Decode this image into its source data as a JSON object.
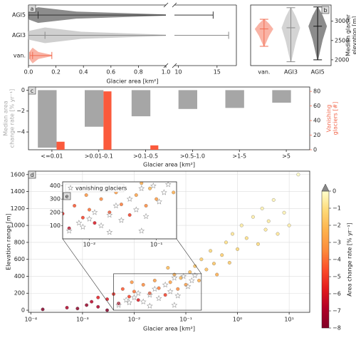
{
  "chart_data": [
    {
      "type": "violin-h",
      "label": "a",
      "xlabel": "Glacier area [km²]",
      "xlim": [
        0,
        1.0
      ],
      "xticks": [
        {
          "value": 0,
          "label": "0.0"
        },
        0.2,
        0.4,
        0.6,
        0.8,
        {
          "value": 1,
          "label": "1.0"
        }
      ],
      "x2lim": [
        9.5,
        17.5
      ],
      "x2ticks": [
        10,
        15
      ],
      "violins": [
        {
          "name": "AGI5",
          "min": 0.0,
          "median": 0.07,
          "max": 14.5,
          "color": "#8c8c8c",
          "line_color": "#333333"
        },
        {
          "name": "AGI3",
          "min": 0.0,
          "median": 0.12,
          "max": 16.5,
          "color": "#cfcfcf",
          "line_color": "#8a8a8a"
        },
        {
          "name": "van.",
          "min": 0.01,
          "median": 0.03,
          "max": 0.17,
          "color": "#f9b3a5",
          "line_color": "#f26b50"
        }
      ]
    },
    {
      "type": "violin-v",
      "label": "b",
      "ylabel": [
        "Median glacier",
        "elevation [m]"
      ],
      "ylim": [
        1850,
        3420
      ],
      "yticks": [
        2000,
        2500,
        3000
      ],
      "violins": [
        {
          "name": "van.",
          "min": 2350,
          "median": 2800,
          "max": 3050,
          "color": "#f9b3a5",
          "line_color": "#f26b50"
        },
        {
          "name": "AGI3",
          "min": 1950,
          "median": 2830,
          "max": 3350,
          "color": "#d4d4d4",
          "line_color": "#8a8a8a"
        },
        {
          "name": "AGI5",
          "min": 2000,
          "median": 2870,
          "max": 3370,
          "color": "#8c8c8c",
          "line_color": "#111111"
        }
      ]
    },
    {
      "type": "bar",
      "label": "c",
      "xlabel": "Glacier area [km²]",
      "ylabel": [
        "Median area",
        "change rate [% yr⁻¹]"
      ],
      "ylabel_color": "#aaaaaa",
      "y2label": [
        "Vanishing",
        "glaciers [#]"
      ],
      "y2label_color": "#f26b50",
      "categories": [
        "<=0.01",
        ">0.01-0.1",
        ">0.1-0.5",
        ">0.5-1.0",
        ">1-5",
        ">5"
      ],
      "ylim": [
        -5.7,
        0.3
      ],
      "yticks": [
        0,
        {
          "value": -2,
          "label": "−2"
        },
        {
          "value": -4,
          "label": "−4"
        }
      ],
      "y2lim": [
        0,
        86
      ],
      "y2ticks": [
        0,
        20,
        40,
        60,
        80
      ],
      "series": [
        {
          "color": "#a6a6a6",
          "values": [
            -5.5,
            -3.5,
            -2.5,
            -1.8,
            -1.7,
            -1.2
          ]
        },
        {
          "color": "#fb5a3c",
          "axis": "y2",
          "values": [
            11,
            80,
            6,
            null,
            null,
            null
          ]
        }
      ]
    },
    {
      "type": "scatter",
      "label": "d",
      "xlabel": "Glacier area [km²]",
      "ylabel": "Elevation range [m]",
      "log_x": true,
      "grid": true,
      "xlim": [
        9e-05,
        25
      ],
      "xticks": [
        {
          "value": 0.0001,
          "label": "10⁻⁴"
        },
        {
          "value": 0.001,
          "label": "10⁻³"
        },
        {
          "value": 0.01,
          "label": "10⁻²"
        },
        {
          "value": 0.1,
          "label": "10⁻¹"
        },
        {
          "value": 1,
          "label": "10⁰"
        },
        {
          "value": 10,
          "label": "10¹"
        }
      ],
      "ylim": [
        -25,
        1640
      ],
      "yticks": [
        0,
        200,
        400,
        600,
        800,
        1000,
        1200,
        1400,
        1600
      ],
      "points": {
        "x": [
          0.00017,
          0.0012,
          0.0015,
          0.002,
          0.003,
          0.004,
          0.005,
          0.006,
          0.008,
          0.01,
          0.012,
          0.015,
          0.02,
          0.025,
          0.03,
          0.04,
          0.05,
          0.06,
          0.07,
          0.08,
          0.1,
          0.12,
          0.15,
          0.18,
          0.2,
          0.25,
          0.3,
          0.35,
          0.4,
          0.5,
          0.6,
          0.7,
          0.8,
          1.0,
          1.2,
          1.5,
          2,
          2.5,
          3,
          3.5,
          4,
          5,
          6,
          8,
          10,
          15,
          0.0008,
          0.002,
          0.009,
          0.045,
          0.003,
          0.0005
        ],
        "y": [
          10,
          60,
          100,
          40,
          130,
          190,
          80,
          250,
          160,
          220,
          120,
          300,
          200,
          350,
          260,
          180,
          330,
          420,
          250,
          380,
          300,
          450,
          520,
          350,
          600,
          480,
          700,
          550,
          420,
          650,
          800,
          560,
          900,
          720,
          1000,
          850,
          1100,
          780,
          1200,
          950,
          1050,
          1300,
          900,
          1150,
          1000,
          1600,
          20,
          150,
          330,
          500,
          0,
          30
        ],
        "rate": [
          -8,
          -7.5,
          -6.8,
          -7,
          -6,
          -5.5,
          -6.5,
          -4.5,
          -5,
          -4,
          -6,
          -3.5,
          -4.5,
          -3,
          -3.8,
          -5,
          -2.8,
          -2.5,
          -3.5,
          -2.2,
          -3,
          -2,
          -1.8,
          -2.5,
          -1.5,
          -2,
          -1.2,
          -1.8,
          -2.5,
          -1.5,
          -1,
          -1.6,
          -0.8,
          -1.2,
          -0.6,
          -1,
          -0.5,
          -1.1,
          -0.4,
          -0.7,
          -0.6,
          -0.3,
          -0.8,
          -0.4,
          -0.5,
          -0.1,
          -7.8,
          -5.8,
          -3.2,
          -2.1,
          -8,
          -7
        ]
      },
      "series": [
        {
          "name": "vanishing glaciers",
          "color": "#999999",
          "x": [
            0.005,
            0.007,
            0.008,
            0.01,
            0.012,
            0.015,
            0.02,
            0.025,
            0.03,
            0.04,
            0.05,
            0.06,
            0.07,
            0.09,
            0.11,
            0.13,
            0.15,
            0.06,
            0.02
          ],
          "y": [
            60,
            120,
            90,
            150,
            200,
            100,
            180,
            250,
            140,
            300,
            220,
            380,
            170,
            400,
            280,
            350,
            410,
            60,
            50
          ]
        }
      ],
      "colorbar": {
        "label": "Area change rate [% yr⁻¹]",
        "lim": [
          -8,
          0
        ],
        "ticks": [
          0,
          {
            "value": -1,
            "label": "−1"
          },
          {
            "value": -2,
            "label": "−2"
          },
          {
            "value": -3,
            "label": "−3"
          },
          {
            "value": -4,
            "label": "−4"
          },
          {
            "value": -5,
            "label": "−5"
          },
          {
            "value": -6,
            "label": "−6"
          },
          {
            "value": -7,
            "label": "−7"
          },
          {
            "value": -8,
            "label": "−8"
          }
        ],
        "colors": [
          "#800026",
          "#b10026",
          "#e31a1c",
          "#fc4e2a",
          "#fd8d3c",
          "#feb24c",
          "#fed976",
          "#ffffcc"
        ]
      }
    },
    {
      "type": "inset",
      "label": "e",
      "log_x": true,
      "xlim": [
        0.004,
        0.2
      ],
      "xticks": [
        {
          "value": 0.01,
          "label": "10⁻²"
        },
        {
          "value": 0.1,
          "label": "10⁻¹"
        }
      ],
      "ylim": [
        0,
        430
      ],
      "yticks": [
        100,
        200,
        300,
        400
      ]
    }
  ]
}
